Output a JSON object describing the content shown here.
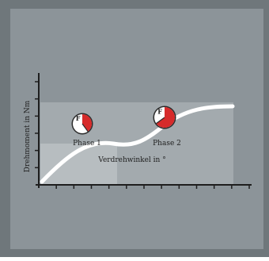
{
  "chart_data": {
    "type": "line",
    "ylabel": "Drehmoment in Nm",
    "xlabel": "Verdrehwinkel in °",
    "x_ticks": 12,
    "y_ticks": 6,
    "grid": false,
    "phases": [
      {
        "label": "Phase 1",
        "gauge_letter": "F",
        "gauge_fill_fraction": 0.4
      },
      {
        "label": "Phase 2",
        "gauge_letter": "F",
        "gauge_fill_fraction": 0.65
      }
    ]
  },
  "colors": {
    "frame": "#6f777b",
    "panel": "#8c9499",
    "band_upper": "#a3aaae",
    "band_lower": "#b7bdc0",
    "curve": "#ffffff",
    "gauge_fill": "#d62b2b",
    "gauge_face": "#ffffff"
  }
}
